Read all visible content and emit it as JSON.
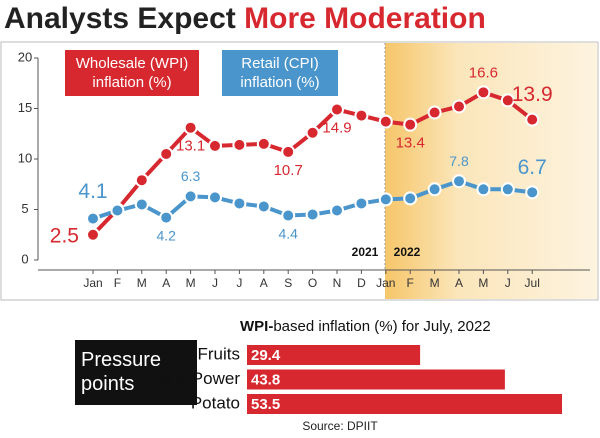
{
  "header": {
    "title": "Analysts Expect",
    "highlight": "More Moderation"
  },
  "chart_data": [
    {
      "type": "line",
      "categories": [
        "Jan",
        "F",
        "M",
        "A",
        "M",
        "J",
        "J",
        "A",
        "S",
        "O",
        "N",
        "D",
        "Jan",
        "F",
        "M",
        "A",
        "M",
        "J",
        "Jul"
      ],
      "year_labels": [
        "2021",
        "2022"
      ],
      "ylim": [
        0,
        20
      ],
      "yticks": [
        0,
        5,
        10,
        15,
        20
      ],
      "grid": false,
      "series": [
        {
          "name": "Wholesale (WPI) inflation (%)",
          "color": "#d7282f",
          "values": [
            2.5,
            5.0,
            7.9,
            10.5,
            13.1,
            11.3,
            11.4,
            11.5,
            10.7,
            12.6,
            14.9,
            14.3,
            13.7,
            13.4,
            14.6,
            15.2,
            16.6,
            15.8,
            13.9
          ],
          "value_labels": [
            "2.5",
            null,
            null,
            null,
            "13.1",
            null,
            null,
            null,
            "10.7",
            null,
            "14.9",
            null,
            null,
            "13.4",
            null,
            null,
            "16.6",
            null,
            "13.9"
          ]
        },
        {
          "name": "Retail (CPI) inflation (%)",
          "color": "#4a95cc",
          "values": [
            4.1,
            4.9,
            5.5,
            4.2,
            6.3,
            6.2,
            5.6,
            5.3,
            4.4,
            4.5,
            4.9,
            5.6,
            6.0,
            6.1,
            7.0,
            7.8,
            7.0,
            7.0,
            6.7
          ],
          "value_labels": [
            "4.1",
            null,
            null,
            "4.2",
            "6.3",
            null,
            null,
            null,
            "4.4",
            null,
            null,
            null,
            null,
            null,
            null,
            "7.8",
            null,
            null,
            "6.7"
          ]
        }
      ]
    },
    {
      "type": "hbar",
      "title_bold": "WPI-",
      "title": "based inflation (%) for July, 2022",
      "annotation": "Pressure points",
      "categories": [
        "Fruits",
        "Fuel & Power",
        "Potato"
      ],
      "values": [
        29.4,
        43.8,
        53.5
      ],
      "color": "#d7282f",
      "xlim": [
        0,
        53.5
      ],
      "source": "Source: DPIIT"
    }
  ]
}
